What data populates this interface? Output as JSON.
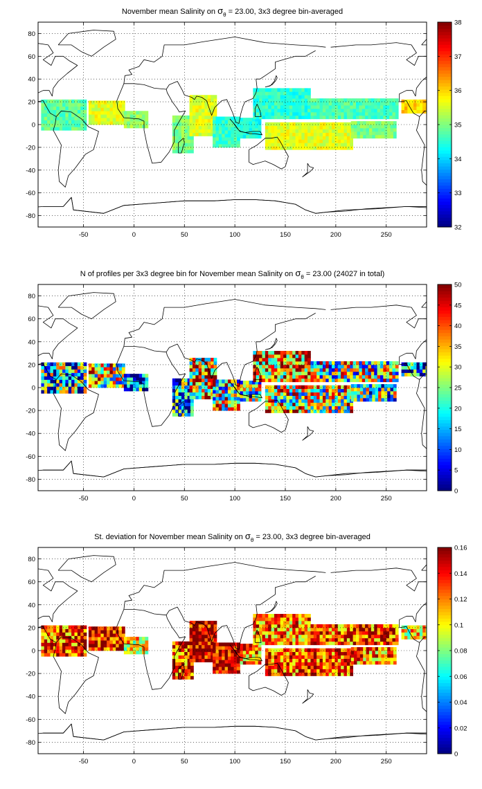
{
  "chart_data": [
    {
      "type": "heatmap",
      "title_pre": "November mean Salinity on ",
      "title_sym": "σ",
      "title_sub": "θ",
      "title_post": " = 23.00, 3x3 degree bin-averaged",
      "xlim": [
        -95,
        290
      ],
      "ylim": [
        -90,
        90
      ],
      "xticks": [
        -50,
        0,
        50,
        100,
        150,
        200,
        250
      ],
      "yticks": [
        -80,
        -60,
        -40,
        -20,
        0,
        20,
        40,
        60,
        80
      ],
      "clim": [
        32,
        38
      ],
      "cticks": [
        32,
        33,
        34,
        35,
        36,
        37,
        38
      ],
      "grid": true,
      "colorbar": "right",
      "field": "salinity",
      "regions": [
        {
          "lon": [
            -92,
            -48
          ],
          "lat": [
            -5,
            22
          ],
          "value": 34.8
        },
        {
          "lon": [
            -45,
            -10
          ],
          "lat": [
            0,
            20
          ],
          "value": 35.6
        },
        {
          "lon": [
            -10,
            12
          ],
          "lat": [
            -3,
            10
          ],
          "value": 35.1
        },
        {
          "lon": [
            38,
            58
          ],
          "lat": [
            -25,
            8
          ],
          "value": 35.0
        },
        {
          "lon": [
            55,
            80
          ],
          "lat": [
            -10,
            25
          ],
          "value": 35.6
        },
        {
          "lon": [
            78,
            105
          ],
          "lat": [
            -20,
            5
          ],
          "value": 34.6
        },
        {
          "lon": [
            105,
            125
          ],
          "lat": [
            -12,
            5
          ],
          "value": 34.4
        },
        {
          "lon": [
            118,
            175
          ],
          "lat": [
            5,
            32
          ],
          "value": 34.5
        },
        {
          "lon": [
            175,
            260
          ],
          "lat": [
            5,
            22
          ],
          "value": 34.7
        },
        {
          "lon": [
            130,
            215
          ],
          "lat": [
            -22,
            2
          ],
          "value": 35.6
        },
        {
          "lon": [
            215,
            260
          ],
          "lat": [
            -12,
            2
          ],
          "value": 35.0
        },
        {
          "lon": [
            265,
            290
          ],
          "lat": [
            10,
            22
          ],
          "value": 36.0
        }
      ]
    },
    {
      "type": "heatmap",
      "title_pre": "N of profiles per 3x3 degree bin for November mean Salinity on ",
      "title_sym": "σ",
      "title_sub": "θ",
      "title_post": " = 23.00 (24027 in total)",
      "xlim": [
        -95,
        290
      ],
      "ylim": [
        -90,
        90
      ],
      "xticks": [
        -50,
        0,
        50,
        100,
        150,
        200,
        250
      ],
      "yticks": [
        -80,
        -60,
        -40,
        -20,
        0,
        20,
        40,
        60,
        80
      ],
      "clim": [
        0,
        50
      ],
      "cticks": [
        0,
        5,
        10,
        15,
        20,
        25,
        30,
        35,
        40,
        45,
        50
      ],
      "grid": true,
      "colorbar": "right",
      "field": "count",
      "total_profiles": 24027,
      "regions": [
        {
          "lon": [
            -92,
            -48
          ],
          "lat": [
            -5,
            22
          ],
          "value": 18
        },
        {
          "lon": [
            -45,
            -10
          ],
          "lat": [
            0,
            20
          ],
          "value": 30
        },
        {
          "lon": [
            -10,
            12
          ],
          "lat": [
            -3,
            10
          ],
          "value": 10
        },
        {
          "lon": [
            38,
            58
          ],
          "lat": [
            -25,
            8
          ],
          "value": 14
        },
        {
          "lon": [
            55,
            80
          ],
          "lat": [
            -10,
            25
          ],
          "value": 35
        },
        {
          "lon": [
            78,
            105
          ],
          "lat": [
            -20,
            5
          ],
          "value": 28
        },
        {
          "lon": [
            105,
            125
          ],
          "lat": [
            -12,
            5
          ],
          "value": 22
        },
        {
          "lon": [
            118,
            175
          ],
          "lat": [
            5,
            32
          ],
          "value": 38
        },
        {
          "lon": [
            175,
            260
          ],
          "lat": [
            5,
            22
          ],
          "value": 26
        },
        {
          "lon": [
            130,
            215
          ],
          "lat": [
            -22,
            2
          ],
          "value": 30
        },
        {
          "lon": [
            215,
            260
          ],
          "lat": [
            -12,
            2
          ],
          "value": 20
        },
        {
          "lon": [
            265,
            290
          ],
          "lat": [
            10,
            22
          ],
          "value": 12
        }
      ]
    },
    {
      "type": "heatmap",
      "title_pre": "St. deviation for November mean Salinity on ",
      "title_sym": "σ",
      "title_sub": "θ",
      "title_post": " = 23.00, 3x3 degree bin-averaged",
      "xlim": [
        -95,
        290
      ],
      "ylim": [
        -90,
        90
      ],
      "xticks": [
        -50,
        0,
        50,
        100,
        150,
        200,
        250
      ],
      "yticks": [
        -80,
        -60,
        -40,
        -20,
        0,
        20,
        40,
        60,
        80
      ],
      "clim": [
        0,
        0.16
      ],
      "cticks": [
        0,
        0.02,
        0.04,
        0.06,
        0.08,
        0.1,
        0.12,
        0.14,
        0.16
      ],
      "grid": true,
      "colorbar": "right",
      "field": "std",
      "regions": [
        {
          "lon": [
            -92,
            -48
          ],
          "lat": [
            -5,
            22
          ],
          "value": 0.13
        },
        {
          "lon": [
            -45,
            -10
          ],
          "lat": [
            0,
            20
          ],
          "value": 0.14
        },
        {
          "lon": [
            -10,
            12
          ],
          "lat": [
            -3,
            10
          ],
          "value": 0.1
        },
        {
          "lon": [
            38,
            58
          ],
          "lat": [
            -25,
            8
          ],
          "value": 0.13
        },
        {
          "lon": [
            55,
            80
          ],
          "lat": [
            -10,
            25
          ],
          "value": 0.15
        },
        {
          "lon": [
            78,
            105
          ],
          "lat": [
            -20,
            5
          ],
          "value": 0.15
        },
        {
          "lon": [
            105,
            125
          ],
          "lat": [
            -12,
            5
          ],
          "value": 0.12
        },
        {
          "lon": [
            118,
            175
          ],
          "lat": [
            5,
            32
          ],
          "value": 0.12
        },
        {
          "lon": [
            175,
            260
          ],
          "lat": [
            5,
            22
          ],
          "value": 0.13
        },
        {
          "lon": [
            130,
            215
          ],
          "lat": [
            -22,
            2
          ],
          "value": 0.13
        },
        {
          "lon": [
            215,
            260
          ],
          "lat": [
            -12,
            2
          ],
          "value": 0.12
        },
        {
          "lon": [
            265,
            290
          ],
          "lat": [
            10,
            22
          ],
          "value": 0.1
        }
      ]
    }
  ]
}
